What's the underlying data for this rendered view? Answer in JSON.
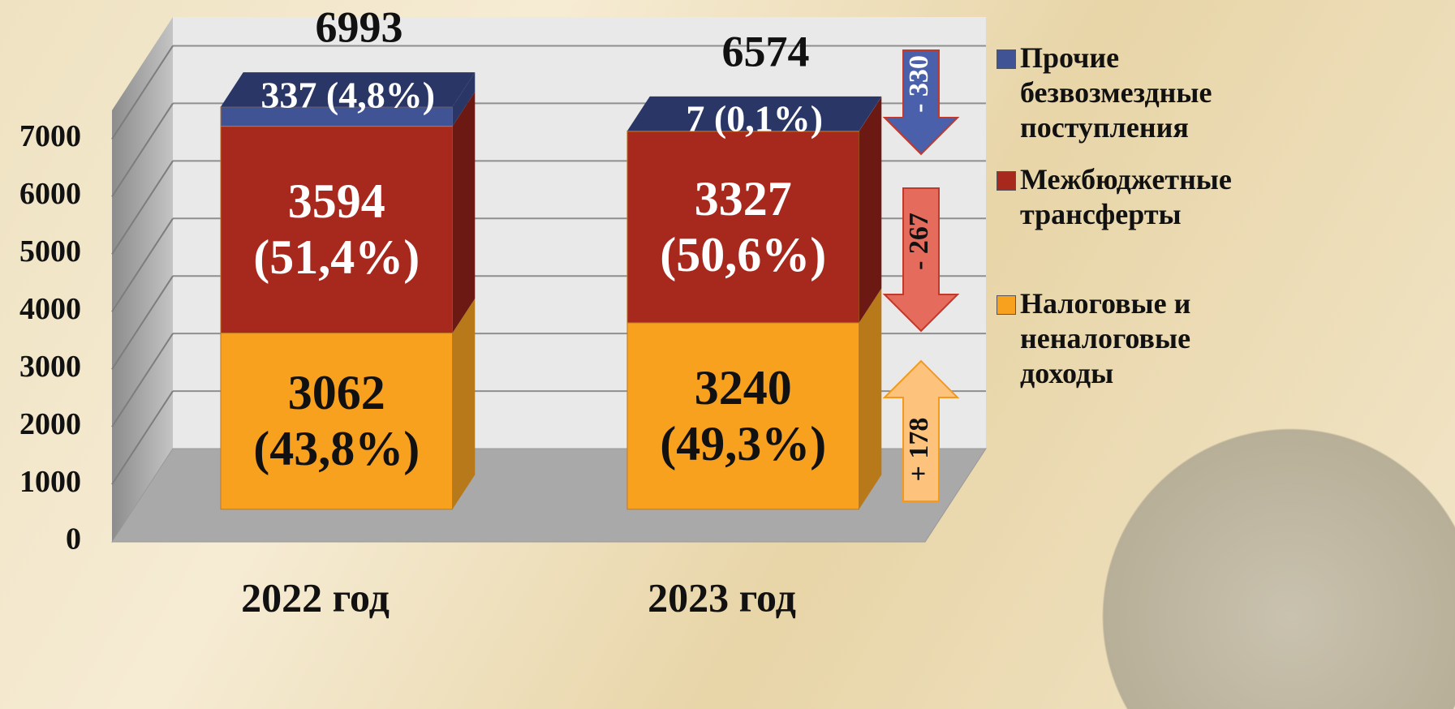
{
  "chart_data": {
    "type": "stacked_bar_3d",
    "categories": [
      "2022 год",
      "2023 год"
    ],
    "series": [
      {
        "name": "Налоговые и неналоговые доходы",
        "color": "#f7a11f",
        "side_color": "#b8791a",
        "label_color": "#111111",
        "values": [
          3062,
          3240
        ],
        "value_labels": [
          "3062 (43,8%)",
          "3240 (49,3%)"
        ]
      },
      {
        "name": "Межбюджетные трансферты",
        "color": "#a7291e",
        "side_color": "#6c1913",
        "label_color": "#ffffff",
        "values": [
          3594,
          3327
        ],
        "value_labels": [
          "3594 (51,4%)",
          "3327 (50,6%)"
        ]
      },
      {
        "name": "Прочие безвозмездные поступления",
        "color": "#3f5395",
        "side_color": "#2a3766",
        "label_color": "#ffffff",
        "values": [
          337,
          7
        ],
        "value_labels": [
          "337 (4,8%)",
          "7 (0,1%)"
        ]
      }
    ],
    "totals": [
      6993,
      6574
    ],
    "annotations": [
      {
        "label": "- 330",
        "direction": "down",
        "color": "#4a60aa",
        "text_color": "#ffffff"
      },
      {
        "label": "- 267",
        "direction": "down",
        "color": "#e56b5c",
        "text_color": "#111111"
      },
      {
        "label": "+ 178",
        "direction": "up",
        "color": "#fdc27c",
        "text_color": "#111111"
      }
    ],
    "ylim": [
      0,
      7500
    ],
    "yticks": [
      0,
      1000,
      2000,
      3000,
      4000,
      5000,
      6000,
      7000
    ],
    "grid": true
  }
}
